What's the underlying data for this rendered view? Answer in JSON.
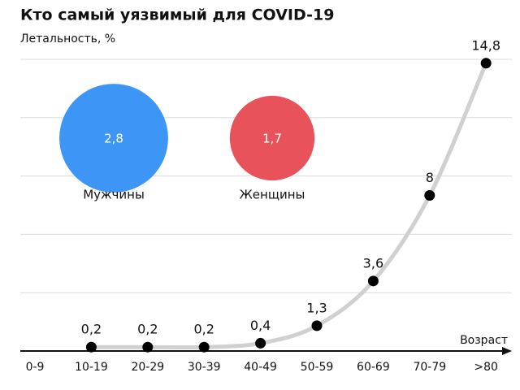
{
  "chart_data": {
    "type": "line",
    "title": "Кто самый уязвимый для COVID-19",
    "y_label": "Летальность, %",
    "x_label": "Возраст",
    "categories": [
      "0-9",
      "10-19",
      "20-29",
      "30-39",
      "40-49",
      "50-59",
      "60-69",
      "70-79",
      ">80"
    ],
    "values": [
      null,
      0.2,
      0.2,
      0.2,
      0.4,
      1.3,
      3.6,
      8,
      14.8
    ],
    "value_labels": [
      null,
      "0,2",
      "0,2",
      "0,2",
      "0,4",
      "1,3",
      "3,6",
      "8",
      "14,8"
    ],
    "color": "#d0d0d0",
    "marker_color": "#000000",
    "ylim": [
      0,
      15
    ],
    "yticks": [
      0,
      3,
      6,
      9,
      12,
      15
    ],
    "grid": true,
    "bubbles": [
      {
        "name": "Мужчины",
        "value": 2.8,
        "label": "2,8",
        "color": "#3d96f5"
      },
      {
        "name": "Женщины",
        "value": 1.7,
        "label": "1,7",
        "color": "#e8525a"
      }
    ]
  }
}
